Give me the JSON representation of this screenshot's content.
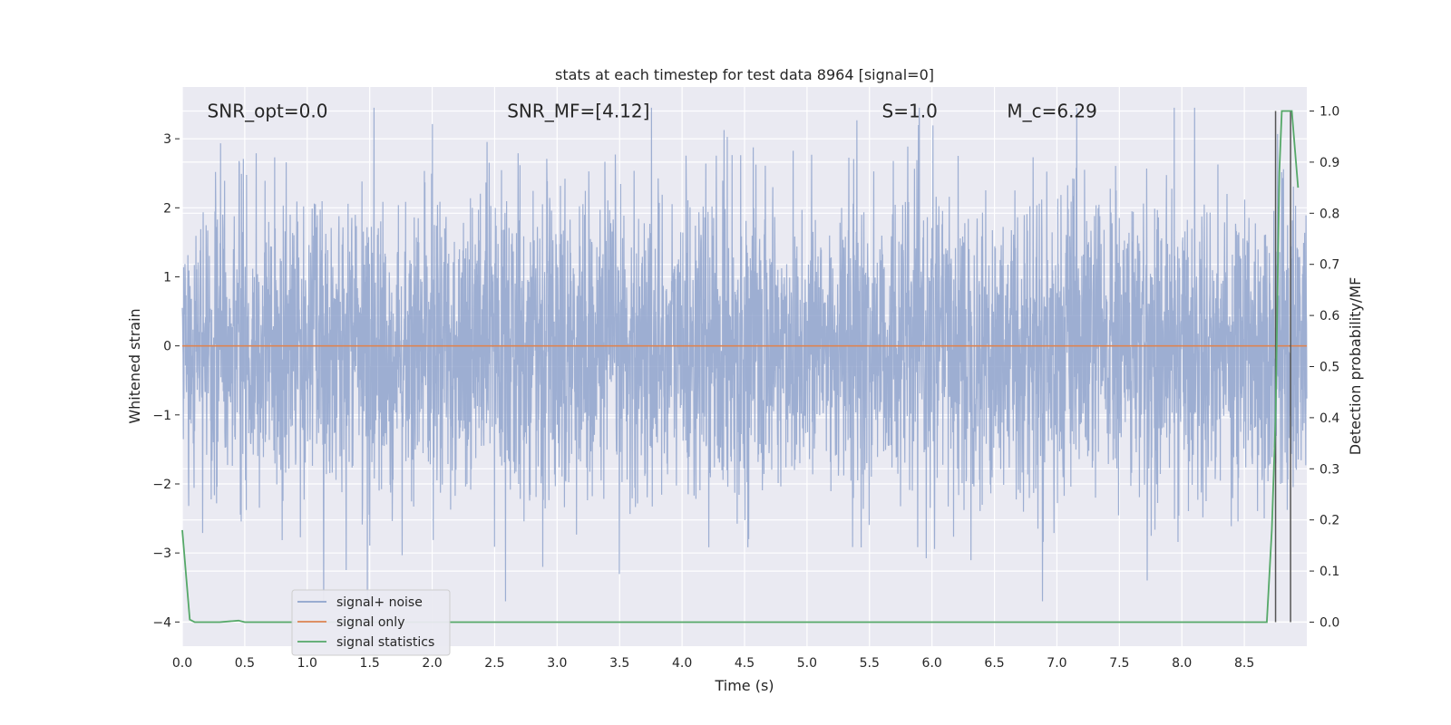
{
  "chart_data": {
    "type": "line",
    "title": "stats at each timestep for test data 8964 [signal=0]",
    "xlabel": "Time (s)",
    "ylabel": "Whitened strain",
    "y2label": "Detection probability/MF",
    "xlim": [
      0.0,
      9.0
    ],
    "ylim": [
      -4.35,
      3.75
    ],
    "y2lim": [
      -0.047,
      1.047
    ],
    "grid": true,
    "legend_position": "lower-left",
    "x_ticks": [
      "0.0",
      "0.5",
      "1.0",
      "1.5",
      "2.0",
      "2.5",
      "3.0",
      "3.5",
      "4.0",
      "4.5",
      "5.0",
      "5.5",
      "6.0",
      "6.5",
      "7.0",
      "7.5",
      "8.0",
      "8.5"
    ],
    "x_tick_values": [
      0.0,
      0.5,
      1.0,
      1.5,
      2.0,
      2.5,
      3.0,
      3.5,
      4.0,
      4.5,
      5.0,
      5.5,
      6.0,
      6.5,
      7.0,
      7.5,
      8.0,
      8.5
    ],
    "y_ticks": [
      "3",
      "2",
      "1",
      "0",
      "−1",
      "−2",
      "−3",
      "−4"
    ],
    "y_tick_values": [
      3,
      2,
      1,
      0,
      -1,
      -2,
      -3,
      -4
    ],
    "y2_ticks": [
      "1.0",
      "0.9",
      "0.8",
      "0.7",
      "0.6",
      "0.5",
      "0.4",
      "0.3",
      "0.2",
      "0.1",
      "0.0"
    ],
    "y2_tick_values": [
      1.0,
      0.9,
      0.8,
      0.7,
      0.6,
      0.5,
      0.4,
      0.3,
      0.2,
      0.1,
      0.0
    ],
    "annotations": [
      {
        "text": "SNR_opt=0.0",
        "x": 0.2,
        "y": 3.4
      },
      {
        "text": "SNR_MF=[4.12]",
        "x": 2.6,
        "y": 3.4
      },
      {
        "text": "S=1.0",
        "x": 5.6,
        "y": 3.4
      },
      {
        "text": "M_c=6.29",
        "x": 6.6,
        "y": 3.4
      }
    ],
    "vlines": [
      8.75,
      8.87
    ],
    "series": [
      {
        "name": "signal+ noise",
        "axis": "left",
        "color": "#8fa3cc",
        "approx_range": [
          -3.7,
          3.45
        ],
        "typical_amplitude": 1.1
      },
      {
        "name": "signal only",
        "axis": "left",
        "color": "#dd8452",
        "x": [
          0.0,
          9.0
        ],
        "y": [
          0,
          0
        ]
      },
      {
        "name": "signal statistics",
        "axis": "right",
        "color": "#55a868",
        "x": [
          0.0,
          0.06,
          0.1,
          0.2,
          0.3,
          0.4,
          0.45,
          0.5,
          1.0,
          2.0,
          3.0,
          4.0,
          5.0,
          6.0,
          7.0,
          8.0,
          8.6,
          8.68,
          8.72,
          8.75,
          8.78,
          8.8,
          8.84,
          8.88,
          8.93
        ],
        "y": [
          0.18,
          0.005,
          0.0,
          0.0,
          0.0,
          0.002,
          0.003,
          0.0,
          0.0,
          0.0,
          0.0,
          0.0,
          0.0,
          0.0,
          0.0,
          0.0,
          0.0,
          0.0,
          0.18,
          0.4,
          0.88,
          1.0,
          1.0,
          1.0,
          0.85
        ]
      }
    ]
  }
}
